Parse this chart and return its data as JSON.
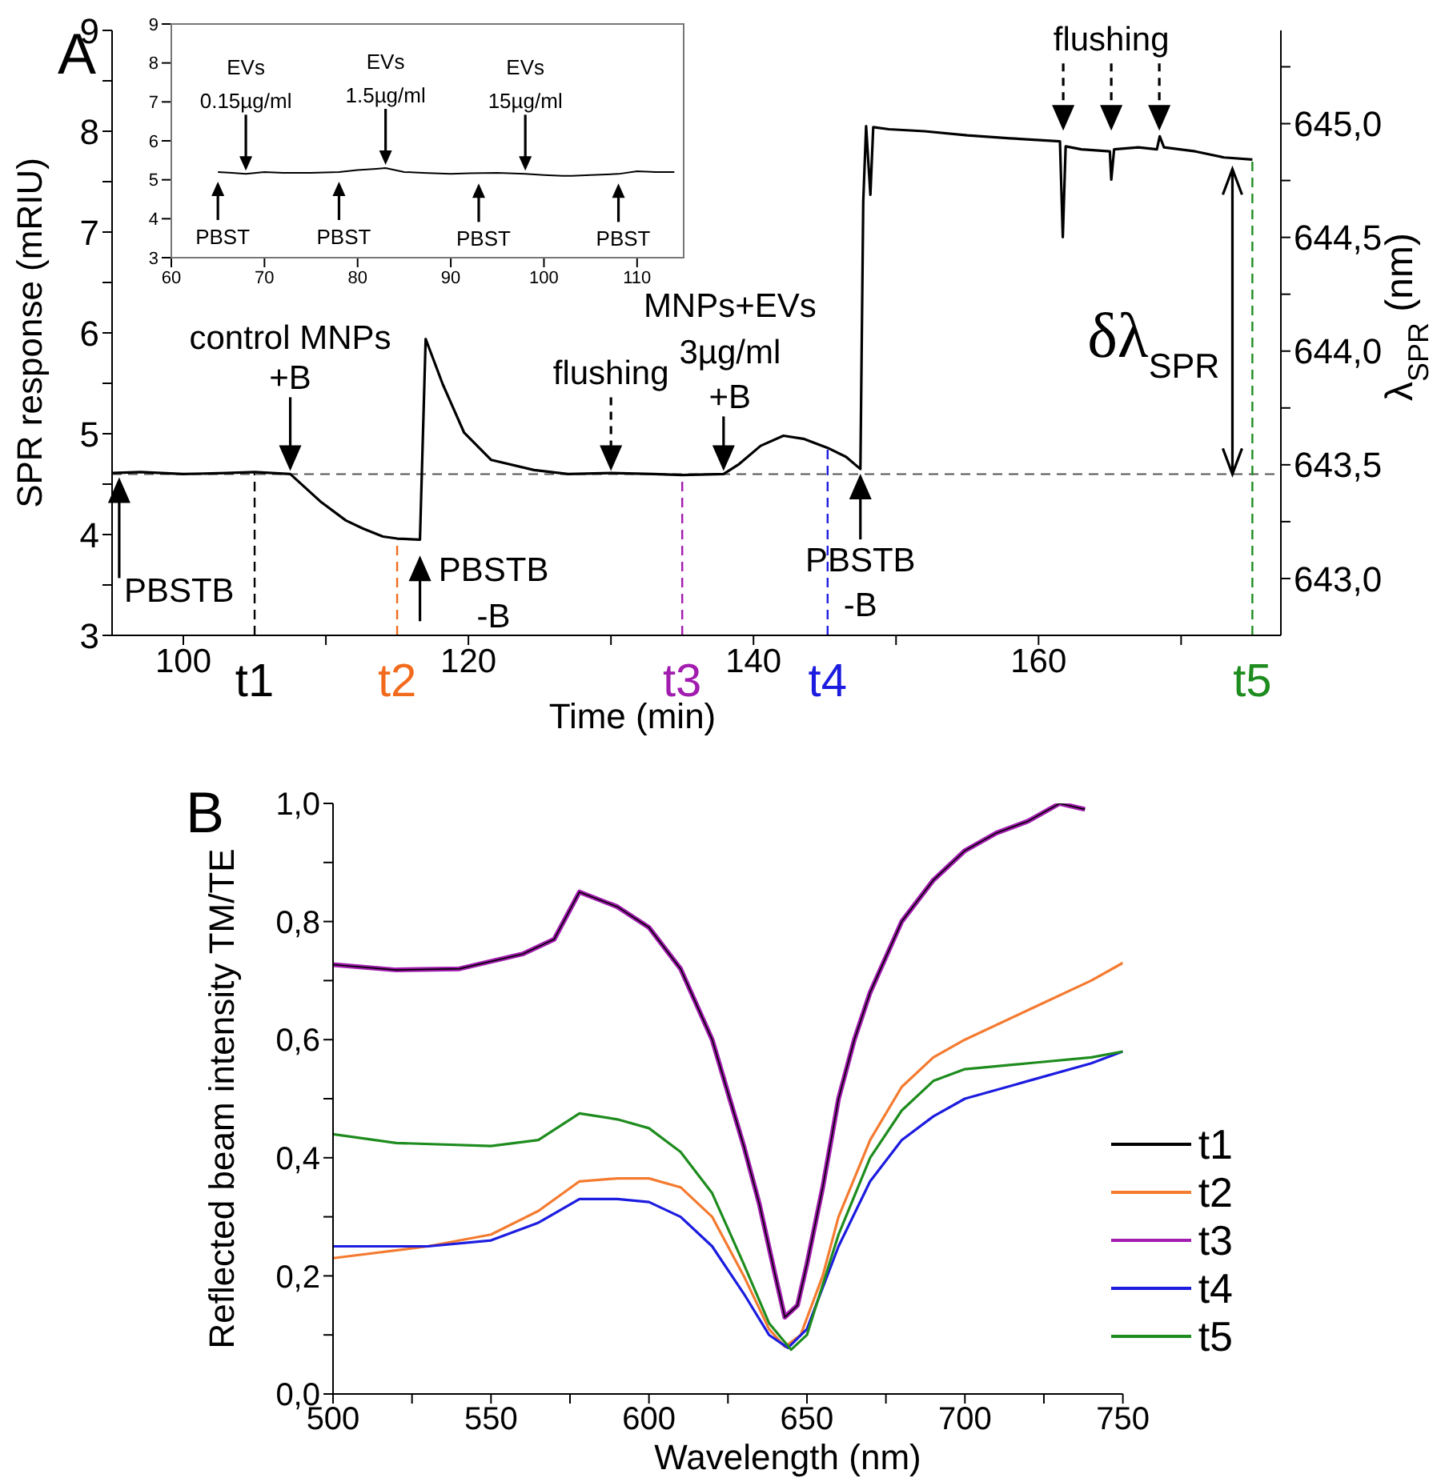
{
  "chart_data": [
    {
      "type": "line",
      "xlabel": "Time (min)",
      "ylabel": "SPR response (mRIU)",
      "y2label": "λ$_{SPR}$ (nm)",
      "xlim": [
        95,
        177
      ],
      "xticks": [
        100,
        {
          "value": 110,
          "label": null
        },
        120,
        {
          "value": 130,
          "label": null
        },
        140,
        {
          "value": 150,
          "label": null
        },
        160,
        {
          "value": 170,
          "label": null
        }
      ],
      "ylim": [
        3,
        9
      ],
      "yticks": [
        3,
        {
          "value": 3.5,
          "label": null
        },
        4,
        {
          "value": 4.5,
          "label": null
        },
        5,
        {
          "value": 5.5,
          "label": null
        },
        6,
        {
          "value": 6.5,
          "label": null
        },
        7,
        {
          "value": 7.5,
          "label": null
        },
        8,
        {
          "value": 8.5,
          "label": null
        },
        9
      ],
      "y2lim": [
        642.75,
        645.41
      ],
      "y2ticks": [
        {
          "value": 643,
          "label": "643,0"
        },
        {
          "value": 643.25,
          "label": null
        },
        {
          "value": 643.5,
          "label": "643,5"
        },
        {
          "value": 643.75,
          "label": null
        },
        {
          "value": 644,
          "label": "644,0"
        },
        {
          "value": 644.25,
          "label": null
        },
        {
          "value": 644.5,
          "label": "644,5"
        },
        {
          "value": 644.75,
          "label": null
        },
        {
          "value": 645,
          "label": "645,0"
        },
        {
          "value": 645.25,
          "label": null
        }
      ],
      "series": [
        {
          "color": "#000000",
          "x": [
            95,
            97,
            100,
            103,
            105,
            107.5,
            109.6,
            111.4,
            112.6,
            114,
            115,
            116.6,
            117.0,
            118.2,
            119.7,
            121.6,
            124.6,
            127,
            130,
            133,
            135,
            137.9,
            139,
            140.5,
            142.1,
            143.5,
            145.2,
            146.5,
            147.5,
            147.7,
            147.9,
            148.2,
            148.4,
            149.5,
            152,
            155,
            158,
            161.5,
            161.7,
            161.9,
            163,
            165,
            165.1,
            165.3,
            167,
            168.3,
            168.5,
            168.8,
            171,
            173,
            175
          ],
          "values": [
            4.61,
            4.62,
            4.6,
            4.61,
            4.62,
            4.6,
            4.33,
            4.14,
            4.06,
            3.98,
            3.96,
            3.95,
            5.94,
            5.49,
            5.01,
            4.74,
            4.64,
            4.6,
            4.61,
            4.6,
            4.59,
            4.6,
            4.7,
            4.88,
            4.98,
            4.95,
            4.86,
            4.77,
            4.65,
            7.3,
            8.05,
            7.37,
            8.04,
            8.02,
            8.0,
            7.96,
            7.93,
            7.9,
            6.95,
            7.85,
            7.82,
            7.8,
            7.52,
            7.82,
            7.84,
            7.82,
            7.95,
            7.84,
            7.8,
            7.74,
            7.72
          ]
        }
      ],
      "ref_lines": [
        {
          "axis": "y",
          "value": 4.6,
          "line_style": "dashed",
          "color": "#555555"
        },
        {
          "axis": "x",
          "value": 105,
          "label": "t1",
          "color": "#000000",
          "line_style": "dashed"
        },
        {
          "axis": "x",
          "value": 115,
          "label": "t2",
          "color": "#f26b1d",
          "line_style": "dashed"
        },
        {
          "axis": "x",
          "value": 135,
          "label": "t3",
          "color": "#a21caf",
          "line_style": "dashed"
        },
        {
          "axis": "x",
          "value": 145.2,
          "label": "t4",
          "color": "#1c1ce0",
          "line_style": "dashed"
        },
        {
          "axis": "x",
          "value": 175,
          "label": "t5",
          "color": "#1e8c1e",
          "line_style": "dashed"
        }
      ],
      "annotations": [
        "A",
        {
          "text": "PBSTB",
          "x": 95.5,
          "y": 4.6
        },
        {
          "text": "control MNPs\n+B",
          "x": 107.5,
          "y": 4.6
        },
        {
          "text": "PBSTB\n-B",
          "x": 116.6,
          "y": 3.95
        },
        {
          "text": "flushing",
          "x": 130,
          "y": 4.6
        },
        {
          "text": "MNPs+EVs\n3µg/ml\n+B",
          "x": 137.9,
          "y": 4.6
        },
        {
          "text": "PBSTB\n-B",
          "x": 147.5,
          "y": 4.65
        },
        {
          "text": "flushing",
          "x": 165.1,
          "y": 7.8
        },
        {
          "text": "δλ$_{SPR}$",
          "x": 173.6,
          "y": 7.72
        }
      ]
    },
    {
      "type": "line",
      "xlim": [
        60,
        115
      ],
      "xticks": [
        60,
        70,
        80,
        90,
        100,
        110
      ],
      "ylim": [
        3,
        9
      ],
      "yticks": [
        3,
        4,
        5,
        6,
        7,
        8,
        9
      ],
      "series": [
        {
          "color": "#000000",
          "x": [
            65,
            66.5,
            68,
            70,
            72,
            75,
            78,
            80,
            82,
            83,
            84,
            85,
            87,
            90,
            92,
            95,
            98,
            100,
            102,
            103,
            105,
            108,
            110,
            112,
            114
          ],
          "values": [
            5.2,
            5.18,
            5.15,
            5.2,
            5.18,
            5.18,
            5.2,
            5.25,
            5.28,
            5.3,
            5.25,
            5.2,
            5.18,
            5.15,
            5.17,
            5.18,
            5.15,
            5.12,
            5.1,
            5.1,
            5.12,
            5.15,
            5.22,
            5.2,
            5.2
          ]
        }
      ],
      "annotations": [
        {
          "text": "EVs\n0.15µg/ml",
          "x": 68,
          "y": 5.15
        },
        {
          "text": "EVs\n1.5µg/ml",
          "x": 83,
          "y": 5.3
        },
        {
          "text": "EVs\n15µg/ml",
          "x": 98,
          "y": 5.15
        },
        {
          "text": "PBST",
          "x": 65,
          "y": 5.2
        },
        {
          "text": "PBST",
          "x": 78,
          "y": 5.2
        },
        {
          "text": "PBST",
          "x": 93,
          "y": 5.15
        },
        {
          "text": "PBST",
          "x": 108,
          "y": 5.15
        }
      ]
    },
    {
      "type": "line",
      "xlabel": "Wavelength (nm)",
      "ylabel": "Reflected beam intensity TM/TE",
      "legend": "bottom right",
      "xlim": [
        500,
        750
      ],
      "xticks": [
        500,
        {
          "value": 525,
          "label": null
        },
        550,
        {
          "value": 575,
          "label": null
        },
        600,
        {
          "value": 625,
          "label": null
        },
        650,
        {
          "value": 675,
          "label": null
        },
        700,
        {
          "value": 725,
          "label": null
        },
        750
      ],
      "ylim": [
        0,
        1
      ],
      "yticks": [
        {
          "value": 0,
          "label": "0,0"
        },
        {
          "value": 0.1,
          "label": null
        },
        {
          "value": 0.2,
          "label": "0,2"
        },
        {
          "value": 0.3,
          "label": null
        },
        {
          "value": 0.4,
          "label": "0,4"
        },
        {
          "value": 0.5,
          "label": null
        },
        {
          "value": 0.6,
          "label": "0,6"
        },
        {
          "value": 0.7,
          "label": null
        },
        {
          "value": 0.8,
          "label": "0,8"
        },
        {
          "value": 0.9,
          "label": null
        },
        {
          "value": 1,
          "label": "1,0"
        }
      ],
      "series": [
        {
          "name": "t1",
          "color": "#000000",
          "x": [
            500,
            520,
            540,
            560,
            570,
            578,
            590,
            600,
            610,
            620,
            630,
            635,
            640,
            643,
            647,
            650,
            655,
            660,
            665,
            670,
            680,
            690,
            700,
            710,
            720,
            730,
            738
          ],
          "values": [
            0.727,
            0.718,
            0.72,
            0.745,
            0.77,
            0.85,
            0.825,
            0.79,
            0.72,
            0.6,
            0.42,
            0.32,
            0.2,
            0.13,
            0.15,
            0.22,
            0.35,
            0.5,
            0.6,
            0.68,
            0.8,
            0.87,
            0.92,
            0.95,
            0.97,
            1.0,
            0.99
          ]
        },
        {
          "name": "t2",
          "color": "#f47b30",
          "x": [
            500,
            530,
            550,
            565,
            578,
            590,
            600,
            610,
            620,
            630,
            638,
            643,
            648,
            655,
            660,
            670,
            680,
            690,
            700,
            720,
            740,
            750
          ],
          "values": [
            0.23,
            0.25,
            0.27,
            0.31,
            0.36,
            0.365,
            0.365,
            0.35,
            0.3,
            0.2,
            0.11,
            0.08,
            0.1,
            0.2,
            0.3,
            0.43,
            0.52,
            0.57,
            0.6,
            0.65,
            0.7,
            0.73
          ]
        },
        {
          "name": "t3",
          "color": "#a21caf",
          "x": [
            500,
            520,
            540,
            560,
            570,
            578,
            590,
            600,
            610,
            620,
            630,
            635,
            640,
            643,
            647,
            650,
            655,
            660,
            665,
            670,
            680,
            690,
            700,
            710,
            720,
            730,
            738
          ],
          "values": [
            0.727,
            0.718,
            0.72,
            0.745,
            0.77,
            0.85,
            0.825,
            0.79,
            0.72,
            0.6,
            0.42,
            0.32,
            0.2,
            0.13,
            0.15,
            0.22,
            0.35,
            0.5,
            0.6,
            0.68,
            0.8,
            0.87,
            0.92,
            0.95,
            0.97,
            1.0,
            0.99
          ]
        },
        {
          "name": "t4",
          "color": "#1c1ce0",
          "x": [
            500,
            530,
            550,
            565,
            578,
            590,
            600,
            610,
            620,
            630,
            638,
            644,
            650,
            660,
            670,
            680,
            690,
            700,
            720,
            740,
            750
          ],
          "values": [
            0.25,
            0.25,
            0.26,
            0.29,
            0.33,
            0.33,
            0.325,
            0.3,
            0.25,
            0.17,
            0.1,
            0.078,
            0.11,
            0.25,
            0.36,
            0.43,
            0.47,
            0.5,
            0.53,
            0.56,
            0.58
          ]
        },
        {
          "name": "t5",
          "color": "#1e8c1e",
          "x": [
            500,
            520,
            550,
            565,
            578,
            590,
            600,
            610,
            620,
            630,
            638,
            645,
            650,
            660,
            670,
            680,
            690,
            700,
            720,
            740,
            750
          ],
          "values": [
            0.44,
            0.425,
            0.42,
            0.43,
            0.475,
            0.465,
            0.45,
            0.41,
            0.34,
            0.22,
            0.12,
            0.075,
            0.1,
            0.27,
            0.4,
            0.48,
            0.53,
            0.55,
            0.56,
            0.57,
            0.58
          ]
        }
      ],
      "annotations": [
        "B"
      ]
    }
  ]
}
